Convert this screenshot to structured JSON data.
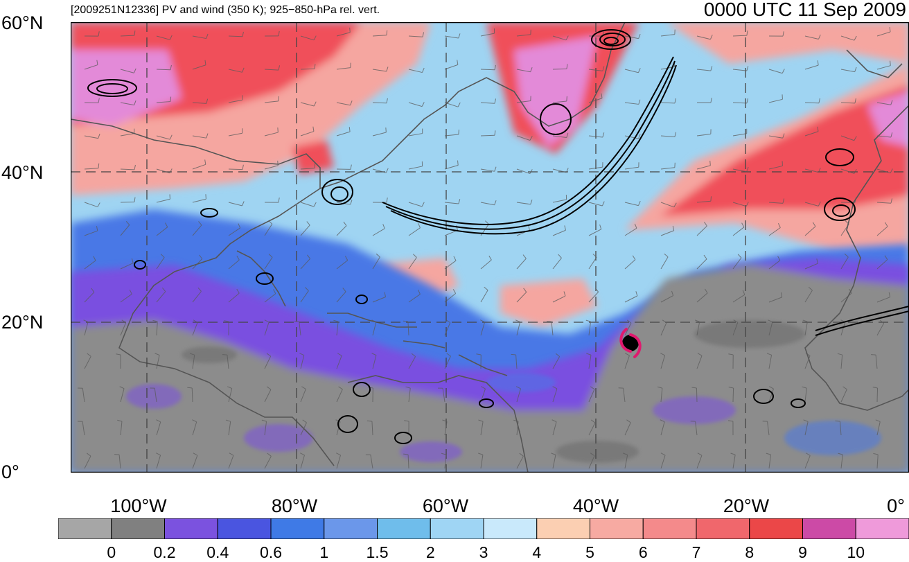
{
  "header": {
    "left_title": "[2009251N12336] PV and wind (350 K); 925−850-hPa rel. vert.",
    "right_title": "0000 UTC 11 Sep 2009"
  },
  "map": {
    "type": "meteorological-map",
    "region": {
      "lon_min": -110,
      "lon_max": 0,
      "lat_min": 0,
      "lat_max": 60
    },
    "gridlines": "dashed",
    "lat_ticks": [
      {
        "value": 60,
        "label": "60°N"
      },
      {
        "value": 40,
        "label": "40°N"
      },
      {
        "value": 20,
        "label": "20°N"
      },
      {
        "value": 0,
        "label": "0°"
      }
    ],
    "lon_ticks": [
      {
        "value": -100,
        "label": "100°W"
      },
      {
        "value": -80,
        "label": "80°W"
      },
      {
        "value": -60,
        "label": "60°W"
      },
      {
        "value": -40,
        "label": "40°W"
      },
      {
        "value": -20,
        "label": "20°W"
      },
      {
        "value": 0,
        "label": "0°"
      }
    ],
    "storm": {
      "lon": -35,
      "lat": 17,
      "symbol": "tropical-cyclone-icon",
      "color": "#e0196e"
    },
    "colors": {
      "tropics_gray": "#8c8c8c",
      "purple": "#7a4fe0",
      "blue": "#4a78e6",
      "light_blue": "#9fd4f2",
      "pink": "#f5a6a0",
      "red": "#f0505a",
      "magenta": "#e38ad8",
      "coastline": "#555555",
      "vorticity_contour": "#000000"
    }
  },
  "colorbar": {
    "colors": [
      "#a6a6a6",
      "#808080",
      "#7b52df",
      "#4a55e0",
      "#3f7ae6",
      "#6b97ea",
      "#6fbdeb",
      "#9fd5f4",
      "#c9e9fb",
      "#fbcfb2",
      "#f7aaa2",
      "#f48a8b",
      "#f0676c",
      "#eb4748",
      "#cc4aa6",
      "#ef9ada"
    ],
    "labels": [
      "0",
      "0.2",
      "0.4",
      "0.6",
      "1",
      "1.5",
      "2",
      "3",
      "4",
      "5",
      "6",
      "7",
      "8",
      "9",
      "10"
    ]
  }
}
